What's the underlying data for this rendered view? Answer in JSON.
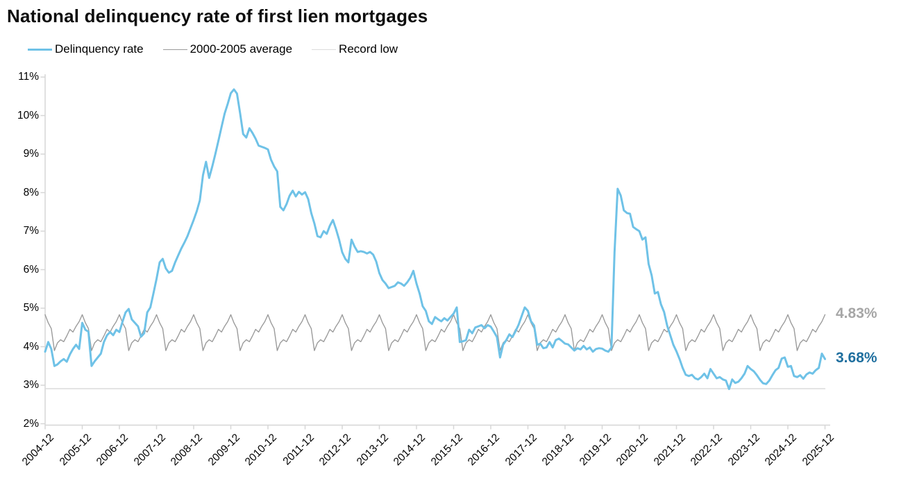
{
  "title": "National delinquency rate of first lien mortgages",
  "legend": [
    {
      "label": "Delinquency rate",
      "color": "#6fc2e7",
      "thickness": 3
    },
    {
      "label": "2000-2005 average",
      "color": "#9b9b9b",
      "thickness": 1.5
    },
    {
      "label": "Record low",
      "color": "#dcdcdc",
      "thickness": 1.5
    }
  ],
  "axes": {
    "y_tick_labels": [
      "11%",
      "10%",
      "9%",
      "8%",
      "7%",
      "6%",
      "5%",
      "4%",
      "3%",
      "2%"
    ],
    "y_tick_values": [
      11,
      10,
      9,
      8,
      7,
      6,
      5,
      4,
      3,
      2
    ],
    "x_tick_labels": [
      "2004-12",
      "2005-12",
      "2006-12",
      "2007-12",
      "2008-12",
      "2009-12",
      "2010-12",
      "2011-12",
      "2012-12",
      "2013-12",
      "2014-12",
      "2015-12",
      "2016-12",
      "2017-12",
      "2018-12",
      "2019-12",
      "2020-12",
      "2021-12",
      "2022-12",
      "2023-12",
      "2024-12",
      "2025-12"
    ],
    "axis_color": "#d6d6d6"
  },
  "annotations": [
    {
      "text": "4.83%",
      "value": 4.83,
      "color": "#a6a6a6"
    },
    {
      "text": "3.68%",
      "value": 3.68,
      "color": "#1f6f9f"
    }
  ],
  "chart_data": {
    "type": "line",
    "title": "National delinquency rate of first lien mortgages",
    "x_start": "2004-12",
    "x_end": "2025-12",
    "frequency": "monthly",
    "ylim": [
      2,
      11
    ],
    "grid": false,
    "legend_position": "top-left",
    "series": [
      {
        "name": "Delinquency rate",
        "color": "#6fc2e7",
        "last_value_label": "3.68%",
        "values": [
          3.87,
          4.12,
          3.94,
          3.5,
          3.54,
          3.62,
          3.68,
          3.61,
          3.8,
          3.94,
          4.05,
          3.94,
          4.62,
          4.44,
          4.39,
          3.5,
          3.62,
          3.72,
          3.82,
          4.12,
          4.3,
          4.38,
          4.3,
          4.44,
          4.38,
          4.65,
          4.89,
          4.98,
          4.71,
          4.62,
          4.53,
          4.26,
          4.35,
          4.89,
          5.02,
          5.38,
          5.76,
          6.19,
          6.28,
          6.03,
          5.92,
          5.97,
          6.19,
          6.37,
          6.55,
          6.7,
          6.87,
          7.08,
          7.29,
          7.52,
          7.8,
          8.45,
          8.8,
          8.38,
          8.68,
          9.0,
          9.35,
          9.7,
          10.05,
          10.3,
          10.58,
          10.68,
          10.57,
          10.06,
          9.52,
          9.43,
          9.67,
          9.55,
          9.4,
          9.22,
          9.19,
          9.16,
          9.12,
          8.85,
          8.68,
          8.55,
          7.63,
          7.54,
          7.7,
          7.92,
          8.05,
          7.9,
          8.02,
          7.95,
          8.01,
          7.83,
          7.47,
          7.2,
          6.87,
          6.84,
          7.0,
          6.93,
          7.14,
          7.29,
          7.05,
          6.78,
          6.45,
          6.28,
          6.19,
          6.78,
          6.6,
          6.46,
          6.48,
          6.46,
          6.42,
          6.46,
          6.39,
          6.21,
          5.91,
          5.73,
          5.64,
          5.52,
          5.55,
          5.58,
          5.67,
          5.64,
          5.58,
          5.67,
          5.79,
          5.97,
          5.64,
          5.38,
          5.05,
          4.93,
          4.66,
          4.59,
          4.77,
          4.71,
          4.66,
          4.74,
          4.68,
          4.77,
          4.86,
          5.02,
          4.12,
          4.14,
          4.17,
          4.44,
          4.35,
          4.5,
          4.53,
          4.56,
          4.48,
          4.56,
          4.52,
          4.39,
          4.25,
          3.72,
          4.05,
          4.17,
          4.32,
          4.25,
          4.4,
          4.57,
          4.8,
          5.02,
          4.93,
          4.66,
          4.55,
          4.05,
          4.08,
          3.96,
          3.98,
          4.12,
          3.98,
          4.17,
          4.21,
          4.15,
          4.08,
          4.06,
          3.98,
          3.9,
          3.96,
          3.93,
          4.02,
          3.93,
          3.98,
          3.87,
          3.94,
          3.96,
          3.95,
          3.9,
          3.87,
          3.98,
          6.45,
          8.1,
          7.92,
          7.54,
          7.47,
          7.45,
          7.11,
          7.05,
          7.0,
          6.78,
          6.84,
          6.15,
          5.85,
          5.38,
          5.42,
          5.1,
          4.9,
          4.55,
          4.3,
          4.05,
          3.88,
          3.68,
          3.45,
          3.27,
          3.24,
          3.27,
          3.18,
          3.15,
          3.21,
          3.3,
          3.18,
          3.42,
          3.3,
          3.18,
          3.21,
          3.15,
          3.12,
          2.9,
          3.15,
          3.06,
          3.09,
          3.18,
          3.3,
          3.5,
          3.42,
          3.36,
          3.26,
          3.14,
          3.05,
          3.03,
          3.12,
          3.26,
          3.39,
          3.45,
          3.69,
          3.72,
          3.48,
          3.5,
          3.24,
          3.21,
          3.26,
          3.17,
          3.28,
          3.33,
          3.3,
          3.39,
          3.45,
          3.82,
          3.68
        ]
      },
      {
        "name": "2000-2005 average",
        "color": "#9b9b9b",
        "last_value_label": "4.83%",
        "seasonal_pattern_dec_to_nov": [
          4.83,
          4.62,
          4.47,
          3.9,
          4.1,
          4.18,
          4.13,
          4.28,
          4.45,
          4.38,
          4.53,
          4.65
        ],
        "note": "Seasonal 12-month pattern repeated every year from 2004-12 through 2025-12; December peak 4.83%, March trough 3.90%"
      },
      {
        "name": "Record low",
        "color": "#dcdcdc",
        "constant_value": 2.91,
        "note": "Horizontal reference line across full x-range"
      }
    ]
  }
}
